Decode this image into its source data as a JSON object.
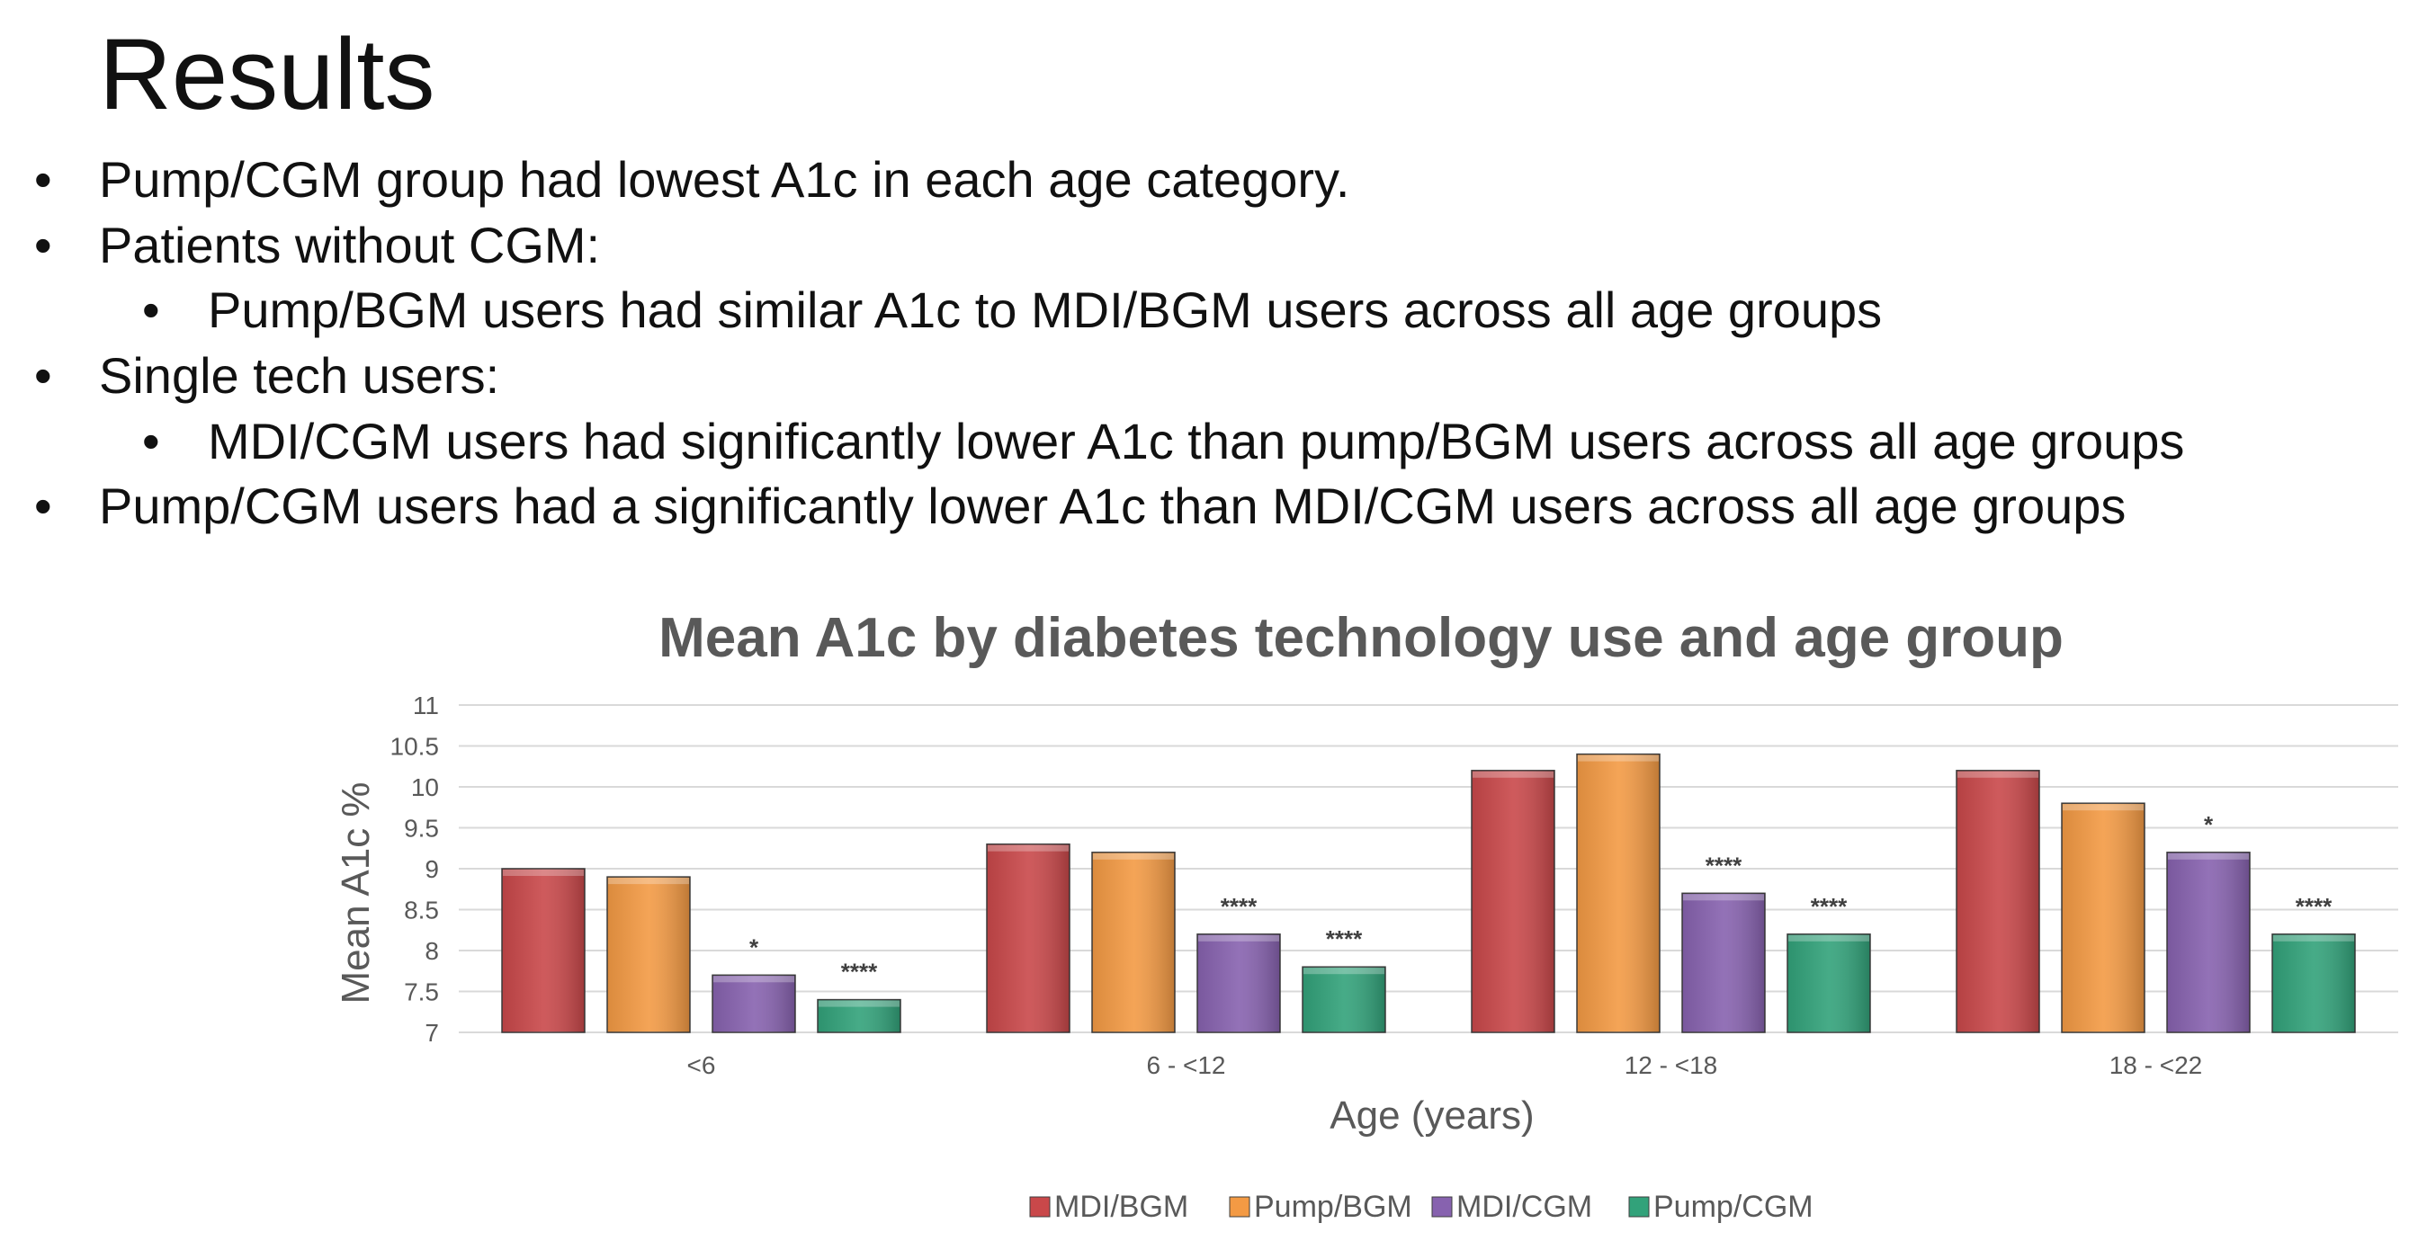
{
  "slide": {
    "title": "Results",
    "bullets": [
      {
        "text": "Pump/CGM group had lowest A1c in each age category.",
        "level": 1
      },
      {
        "text": "Patients without CGM:",
        "level": 1
      },
      {
        "text": "Pump/BGM users had similar A1c to MDI/BGM users across all age groups",
        "level": 2
      },
      {
        "text": "Single tech users:",
        "level": 1
      },
      {
        "text": "MDI/CGM users had significantly lower A1c than pump/BGM users across all age groups",
        "level": 2
      },
      {
        "text": "Pump/CGM users had a significantly lower A1c than MDI/CGM users across all age groups",
        "level": 1
      }
    ],
    "bullet_glyph": "•"
  },
  "chart_data": {
    "type": "bar",
    "title": "Mean A1c by diabetes technology use and age group",
    "xlabel": "Age (years)",
    "ylabel": "Mean A1c %",
    "ylim": [
      7,
      11
    ],
    "yticks": [
      "7",
      "7.5",
      "8",
      "8.5",
      "9",
      "9.5",
      "10",
      "10.5",
      "11"
    ],
    "ytick_values": [
      7,
      7.5,
      8,
      8.5,
      9,
      9.5,
      10,
      10.5,
      11
    ],
    "grid": true,
    "legend_position": "bottom",
    "categories": [
      "<6",
      "6 - <12",
      "12 - <18",
      "18 - <22"
    ],
    "series": [
      {
        "name": "MDI/BGM",
        "color": "#C9484A",
        "values": [
          9.0,
          9.3,
          10.2,
          10.2
        ],
        "annotations": [
          "",
          "",
          "",
          ""
        ]
      },
      {
        "name": "Pump/BGM",
        "color": "#F39A44",
        "values": [
          8.9,
          9.2,
          10.4,
          9.8
        ],
        "annotations": [
          "",
          "",
          "",
          ""
        ]
      },
      {
        "name": "MDI/CGM",
        "color": "#8762AF",
        "values": [
          7.7,
          8.2,
          8.7,
          9.2
        ],
        "annotations": [
          "*",
          "****",
          "****",
          "*"
        ]
      },
      {
        "name": "Pump/CGM",
        "color": "#32A27A",
        "values": [
          7.4,
          7.8,
          8.2,
          8.2
        ],
        "annotations": [
          "****",
          "****",
          "****",
          "****"
        ]
      }
    ],
    "colors": {
      "title": "#595959",
      "axis_text": "#595959",
      "gridline": "#D9D9D9",
      "annotation": "#404040"
    }
  }
}
